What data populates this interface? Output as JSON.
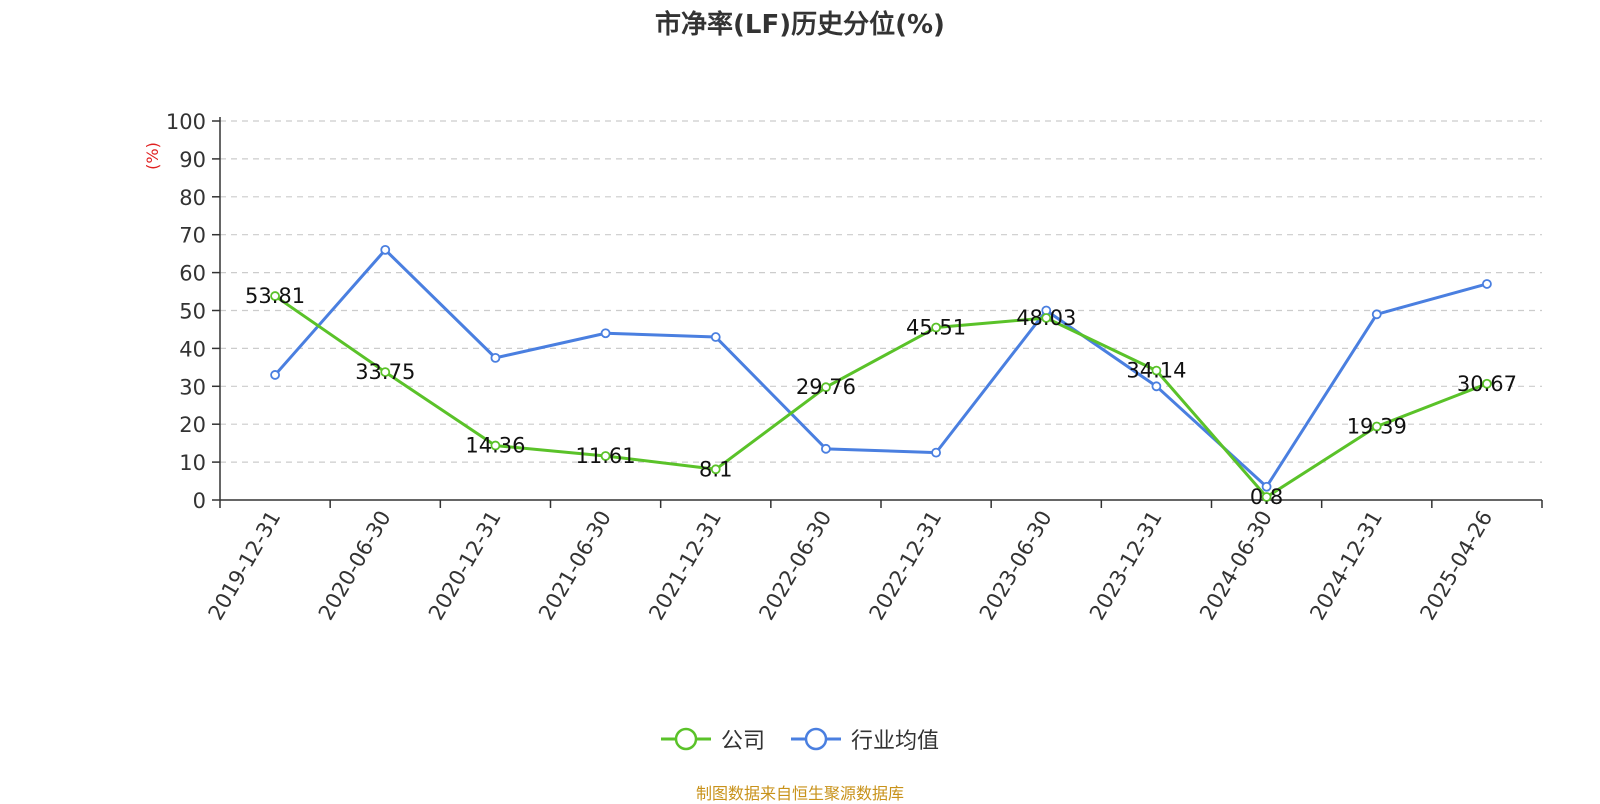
{
  "title": "市净率(LF)历史分位(%)",
  "source": "制图数据来自恒生聚源数据库",
  "colors": {
    "company": "#5ac229",
    "industry": "#4a7fe0",
    "y_unit": "#e02020",
    "source": "#c8921a"
  },
  "chart_data": {
    "type": "line",
    "title": "市净率(LF)历史分位(%)",
    "ylabel": "(%)",
    "xlabel": "",
    "ylim": [
      0,
      100
    ],
    "yticks": [
      0,
      10,
      20,
      30,
      40,
      50,
      60,
      70,
      80,
      90,
      100
    ],
    "grid": true,
    "legend_position": "bottom",
    "categories": [
      "2019-12-31",
      "2020-06-30",
      "2020-12-31",
      "2021-06-30",
      "2021-12-31",
      "2022-06-30",
      "2022-12-31",
      "2023-06-30",
      "2023-12-31",
      "2024-06-30",
      "2024-12-31",
      "2025-04-26"
    ],
    "series": [
      {
        "name": "公司",
        "color": "#5ac229",
        "show_labels": true,
        "values": [
          53.81,
          33.75,
          14.36,
          11.61,
          8.1,
          29.76,
          45.51,
          48.03,
          34.14,
          0.8,
          19.39,
          30.67
        ]
      },
      {
        "name": "行业均值",
        "color": "#4a7fe0",
        "show_labels": false,
        "values": [
          33,
          66,
          37.5,
          44,
          43,
          13.5,
          12.5,
          50,
          30,
          3.5,
          49,
          57
        ]
      }
    ]
  }
}
